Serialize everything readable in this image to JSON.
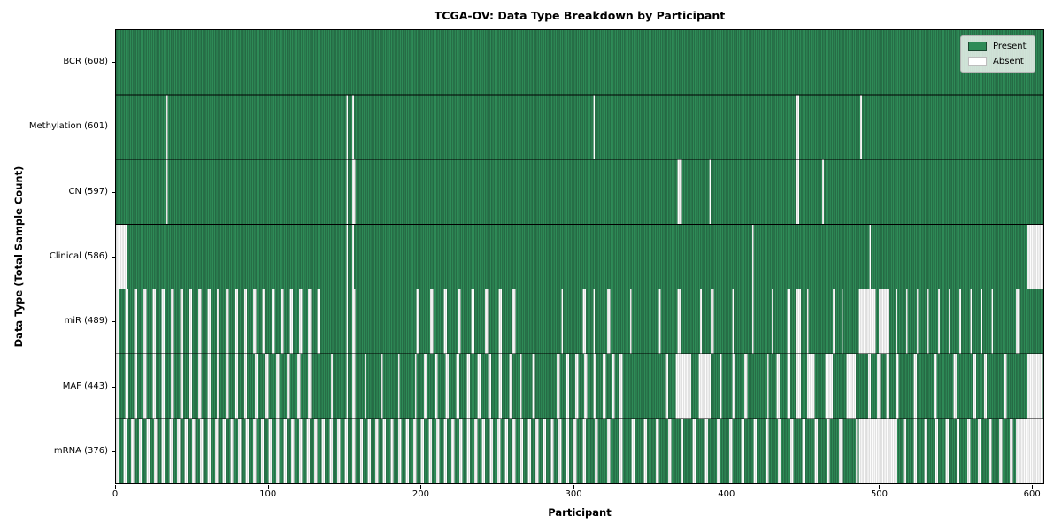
{
  "figure": {
    "title": "TCGA-OV: Data Type Breakdown by Participant",
    "xlabel": "Participant",
    "ylabel": "Data Type (Total Sample Count)"
  },
  "legend": {
    "items": [
      {
        "label": "Present",
        "color": "#2e8b57"
      },
      {
        "label": "Absent",
        "color": "#ffffff"
      }
    ]
  },
  "chart_data": {
    "type": "heatmap",
    "title": "TCGA-OV: Data Type Breakdown by Participant",
    "xlabel": "Participant",
    "ylabel": "Data Type (Total Sample Count)",
    "x_ticks": [
      0,
      100,
      200,
      300,
      400,
      500,
      600
    ],
    "xlim": [
      0,
      608
    ],
    "n_participants": 608,
    "grid": false,
    "legend_position": "upper right",
    "legend_entries": [
      "Present",
      "Absent"
    ],
    "colors": {
      "present": "#2e8b57",
      "present_edge": "#1b4730",
      "absent": "#fdfdfd",
      "absent_edge": "#bcbcbc",
      "row_separator": "#000000"
    },
    "rows": [
      {
        "label": "BCR (608)",
        "data_type": "BCR",
        "present_count": 608,
        "absent_count": 0,
        "absent": []
      },
      {
        "label": "Methylation (601)",
        "data_type": "Methylation",
        "present_count": 601,
        "absent_count": 7,
        "absent": [
          [
            33,
            33
          ],
          [
            151,
            151
          ],
          [
            155,
            155
          ],
          [
            313,
            313
          ],
          [
            446,
            447
          ],
          [
            488,
            488
          ]
        ]
      },
      {
        "label": "CN (597)",
        "data_type": "CN",
        "present_count": 597,
        "absent_count": 11,
        "absent": [
          [
            33,
            33
          ],
          [
            151,
            151
          ],
          [
            155,
            156
          ],
          [
            368,
            370
          ],
          [
            389,
            389
          ],
          [
            446,
            447
          ],
          [
            463,
            463
          ]
        ]
      },
      {
        "label": "Clinical (586)",
        "data_type": "Clinical",
        "present_count": 586,
        "absent_count": 22,
        "absent": [
          [
            0,
            6
          ],
          [
            151,
            151
          ],
          [
            155,
            155
          ],
          [
            417,
            417
          ],
          [
            494,
            494
          ],
          [
            597,
            607
          ]
        ]
      },
      {
        "label": "miR (489)",
        "data_type": "miR",
        "present_count": 489,
        "absent_count": 119,
        "absent": [
          {
            "from": 0,
            "to": 136,
            "step": 6,
            "len": 2
          },
          [
            151,
            151
          ],
          [
            155,
            156
          ],
          {
            "from": 197,
            "to": 262,
            "step": 9,
            "len": 2
          },
          [
            292,
            292
          ],
          [
            306,
            307
          ],
          [
            313,
            313
          ],
          [
            322,
            323
          ],
          [
            337,
            337
          ],
          [
            356,
            356
          ],
          [
            368,
            369
          ],
          [
            383,
            383
          ],
          [
            390,
            391
          ],
          [
            404,
            404
          ],
          [
            417,
            417
          ],
          [
            430,
            430
          ],
          [
            440,
            441
          ],
          [
            446,
            448
          ],
          [
            453,
            453
          ],
          [
            470,
            470
          ],
          [
            476,
            476
          ],
          [
            487,
            497
          ],
          [
            500,
            506
          ],
          {
            "from": 511,
            "to": 580,
            "step": 7,
            "len": 1
          },
          [
            590,
            591
          ]
        ]
      },
      {
        "label": "MAF (443)",
        "data_type": "MAF",
        "present_count": 443,
        "absent_count": 165,
        "absent": [
          {
            "from": 0,
            "to": 88,
            "step": 6,
            "len": 2
          },
          {
            "from": 91,
            "to": 130,
            "step": 7,
            "len": 2
          },
          [
            141,
            141
          ],
          [
            151,
            151
          ],
          [
            155,
            156
          ],
          {
            "from": 163,
            "to": 196,
            "step": 11,
            "len": 1
          },
          {
            "from": 202,
            "to": 258,
            "step": 7,
            "len": 2
          },
          [
            265,
            265
          ],
          [
            273,
            273
          ],
          {
            "from": 289,
            "to": 327,
            "step": 6,
            "len": 2
          },
          [
            330,
            331
          ],
          [
            360,
            361
          ],
          [
            367,
            376
          ],
          [
            382,
            389
          ],
          [
            396,
            396
          ],
          [
            404,
            405
          ],
          [
            412,
            413
          ],
          [
            427,
            427
          ],
          [
            433,
            434
          ],
          [
            440,
            441
          ],
          [
            446,
            448
          ],
          [
            453,
            457
          ],
          [
            465,
            469
          ],
          [
            479,
            484
          ],
          [
            493,
            494
          ],
          [
            499,
            500
          ],
          [
            505,
            506
          ],
          [
            511,
            512
          ],
          [
            523,
            524
          ],
          [
            536,
            537
          ],
          [
            549,
            550
          ],
          [
            562,
            563
          ],
          [
            569,
            570
          ],
          [
            582,
            583
          ],
          [
            597,
            606
          ]
        ]
      },
      {
        "label": "mRNA (376)",
        "data_type": "mRNA",
        "present_count": 376,
        "absent_count": 232,
        "absent": [
          {
            "from": 0,
            "to": 301,
            "step": 5,
            "len": 2
          },
          {
            "from": 306,
            "to": 478,
            "step": 8,
            "len": 2
          },
          [
            485,
            485
          ],
          [
            487,
            511
          ],
          {
            "from": 516,
            "to": 583,
            "step": 7,
            "len": 2
          },
          [
            586,
            587
          ],
          [
            590,
            607
          ]
        ]
      }
    ]
  }
}
